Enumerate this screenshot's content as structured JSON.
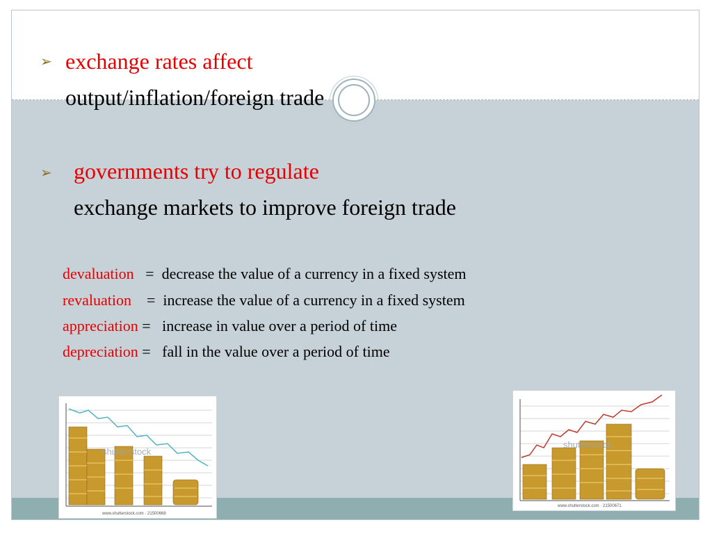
{
  "bullets": [
    {
      "red": "exchange rates affect",
      "black": "output/inflation/foreign trade"
    },
    {
      "red": "governments try to regulate",
      "black": "exchange  markets to improve foreign trade"
    }
  ],
  "definitions": [
    {
      "term": "devaluation",
      "sep": "   =  ",
      "text": "decrease the value of a currency in a fixed system"
    },
    {
      "term": "revaluation",
      "sep": "    =  ",
      "text": "increase the value of a currency in a fixed system"
    },
    {
      "term": "appreciation",
      "sep": " =   ",
      "text": "increase in value over a period of time"
    },
    {
      "term": "depreciation",
      "sep": " =   ",
      "text": "fall in the value over a period of time"
    }
  ],
  "images": {
    "left": {
      "watermark": "shutterstock",
      "caption": "www.shutterstock.com · 21500668"
    },
    "right": {
      "watermark": "shutterstock",
      "caption": "www.shutterstock.com · 21500671"
    }
  },
  "colors": {
    "accent_red": "#e60000",
    "bullet_arrow": "#8a6d1d",
    "body_bg": "#c6d1d8",
    "footer": "#8faeb0"
  }
}
